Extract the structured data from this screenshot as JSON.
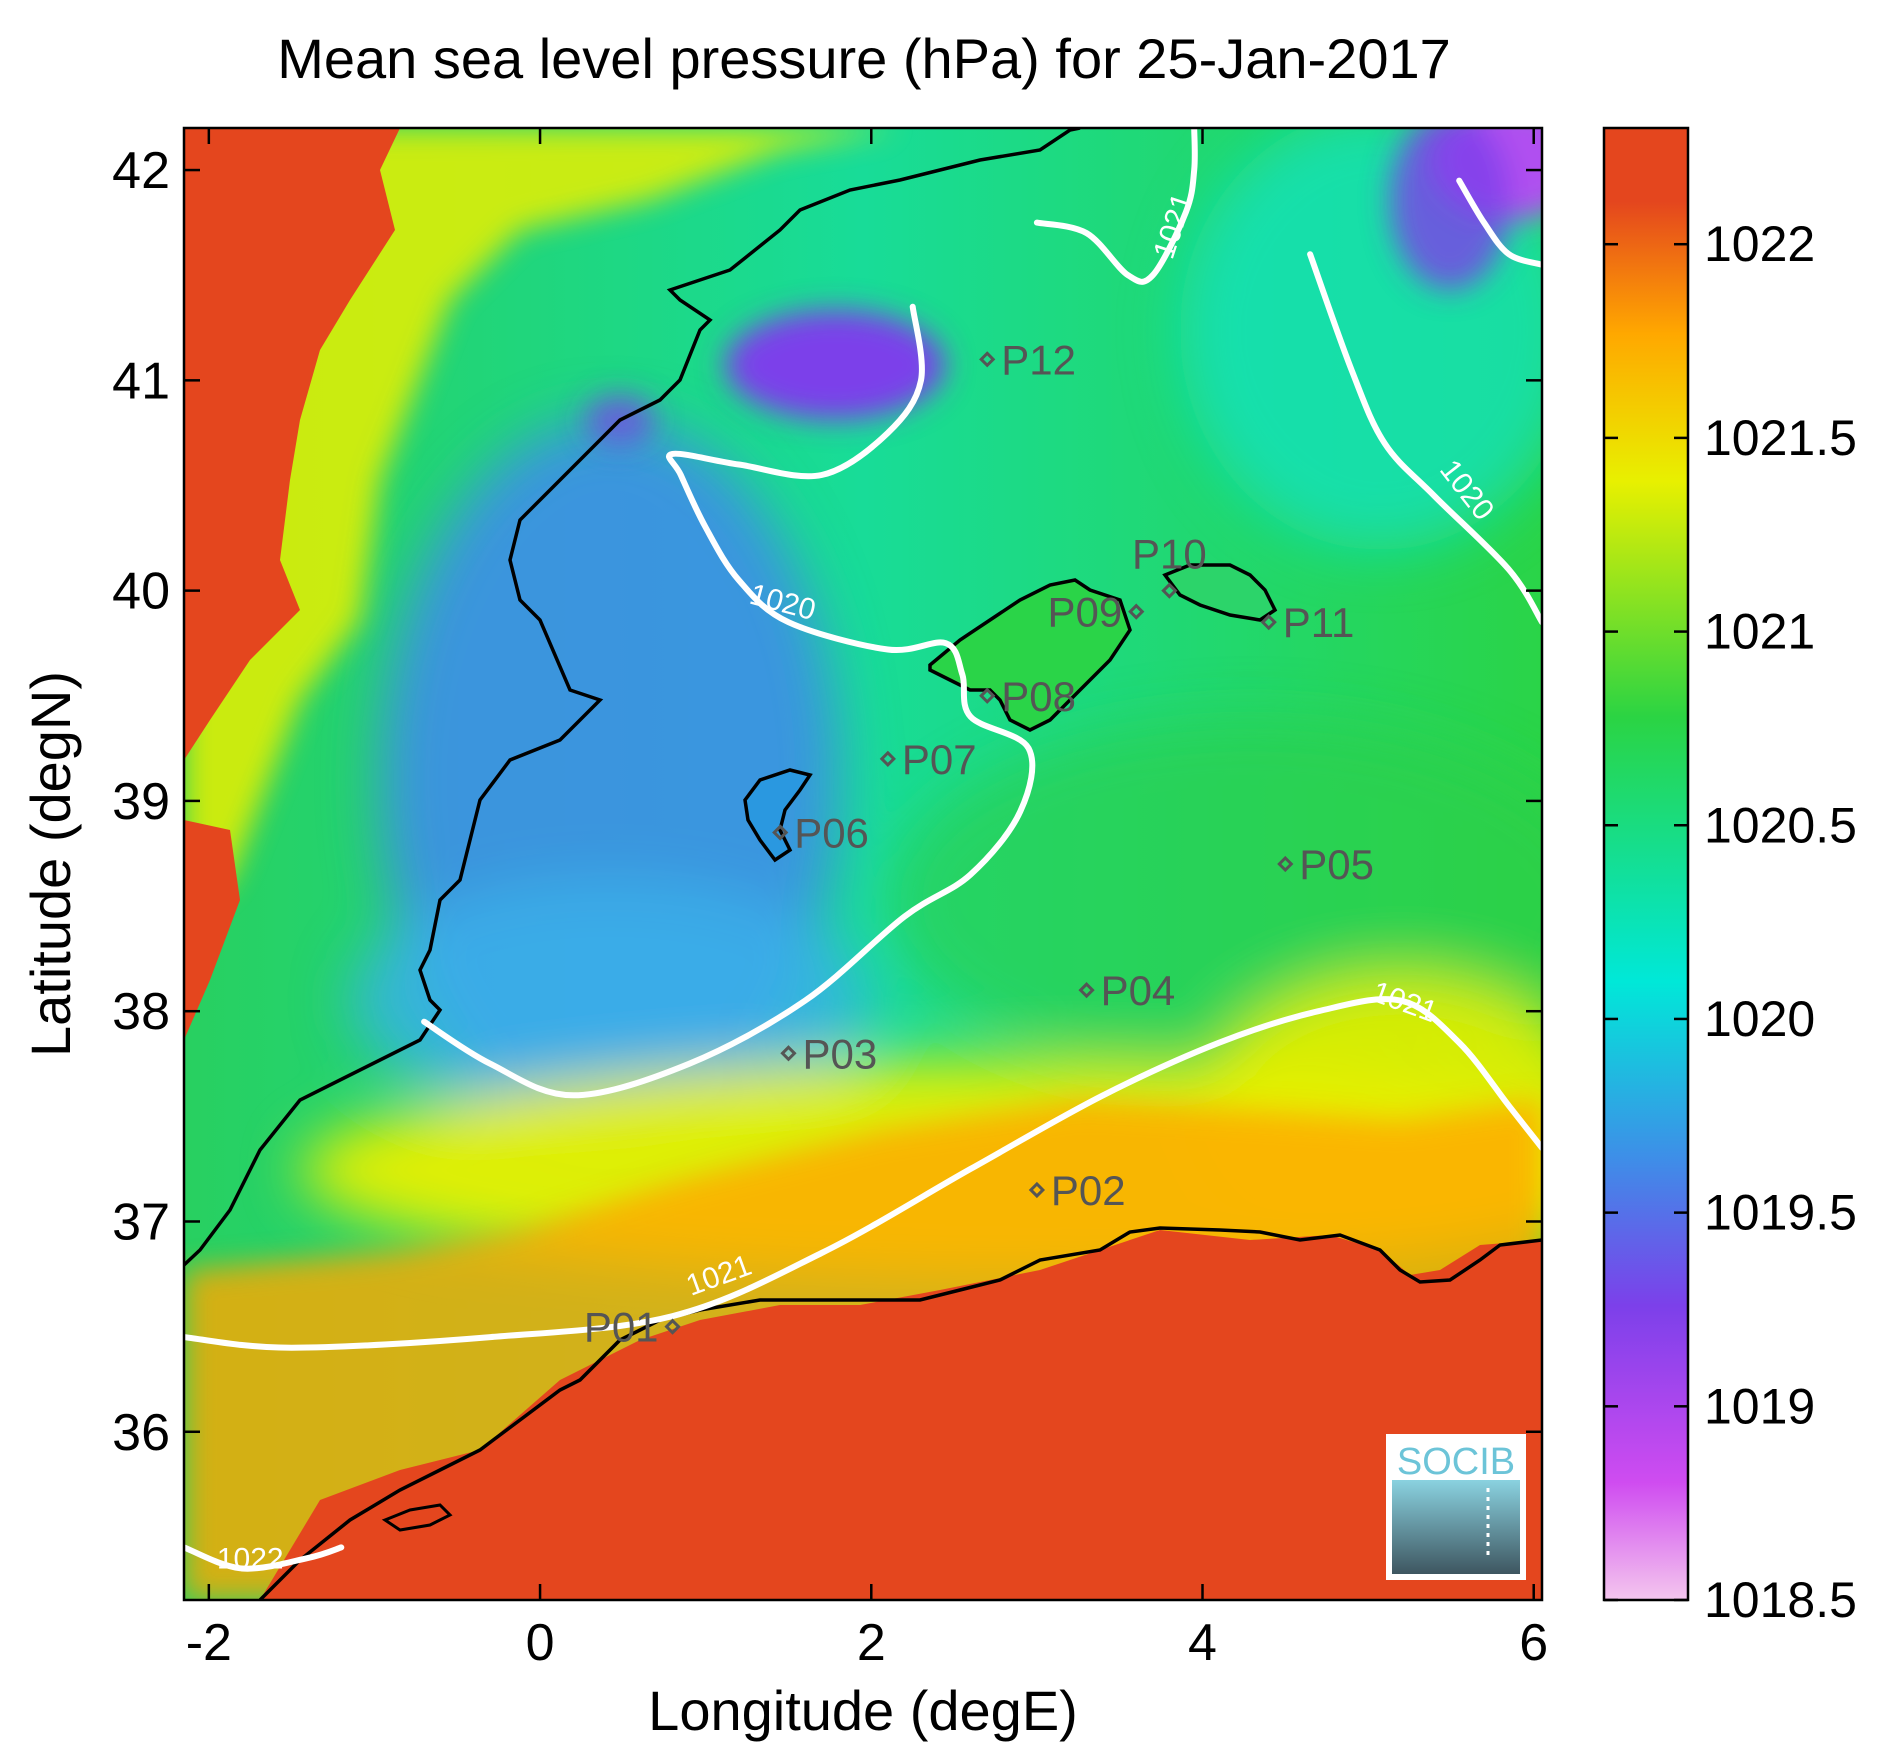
{
  "chart_data": {
    "type": "heatmap",
    "title": "Mean sea level pressure (hPa) for 25-Jan-2017",
    "xlabel": "Longitude (degE)",
    "ylabel": "Latitude (degN)",
    "xlim": [
      -2.15,
      6.05
    ],
    "ylim": [
      35.2,
      42.2
    ],
    "x_ticks": [
      {
        "v": -2,
        "label": "-2"
      },
      {
        "v": 0,
        "label": "0"
      },
      {
        "v": 2,
        "label": "2"
      },
      {
        "v": 4,
        "label": "4"
      },
      {
        "v": 6,
        "label": "6"
      }
    ],
    "y_ticks": [
      {
        "v": 36,
        "label": "36"
      },
      {
        "v": 37,
        "label": "37"
      },
      {
        "v": 38,
        "label": "38"
      },
      {
        "v": 39,
        "label": "39"
      },
      {
        "v": 40,
        "label": "40"
      },
      {
        "v": 41,
        "label": "41"
      },
      {
        "v": 42,
        "label": "42"
      }
    ],
    "colorbar": {
      "range": [
        1018.5,
        1022.3
      ],
      "ticks": [
        {
          "v": 1018.5,
          "label": "1018.5"
        },
        {
          "v": 1019,
          "label": "1019"
        },
        {
          "v": 1019.5,
          "label": "1019.5"
        },
        {
          "v": 1020,
          "label": "1020"
        },
        {
          "v": 1020.5,
          "label": "1020.5"
        },
        {
          "v": 1021,
          "label": "1021"
        },
        {
          "v": 1021.5,
          "label": "1021.5"
        },
        {
          "v": 1022,
          "label": "1022"
        }
      ],
      "colors": [
        "#f4c6ee",
        "#cf4cf0",
        "#7c40ea",
        "#3e8ee8",
        "#00e8d8",
        "#2bd443",
        "#e8f000",
        "#ffa800",
        "#e4461e"
      ]
    },
    "land_color": "#e4461e",
    "contour_color": "#ffffff",
    "contours": [
      {
        "level": 1020,
        "label": "1020",
        "points": [
          [
            -0.7,
            37.95
          ],
          [
            -0.3,
            37.75
          ],
          [
            0.2,
            37.6
          ],
          [
            0.9,
            37.75
          ],
          [
            1.6,
            38.05
          ],
          [
            2.2,
            38.45
          ],
          [
            2.6,
            38.65
          ],
          [
            2.9,
            38.95
          ],
          [
            2.95,
            39.25
          ],
          [
            2.6,
            39.4
          ],
          [
            2.55,
            39.6
          ],
          [
            2.45,
            39.75
          ],
          [
            2.1,
            39.72
          ],
          [
            1.5,
            39.85
          ],
          [
            1.2,
            40.05
          ],
          [
            1.0,
            40.3
          ],
          [
            0.85,
            40.55
          ],
          [
            0.8,
            40.65
          ],
          [
            1.2,
            40.6
          ],
          [
            1.7,
            40.55
          ],
          [
            2.1,
            40.75
          ],
          [
            2.3,
            41.0
          ],
          [
            2.25,
            41.35
          ]
        ],
        "label_pos": [
          1.45,
          39.9
        ],
        "label_rot": 15
      },
      {
        "level": 1020,
        "label": "1020",
        "points": [
          [
            4.65,
            41.6
          ],
          [
            4.9,
            41.05
          ],
          [
            5.1,
            40.7
          ],
          [
            5.4,
            40.45
          ],
          [
            5.85,
            40.1
          ],
          [
            6.05,
            39.85
          ]
        ],
        "label_pos": [
          5.55,
          40.45
        ],
        "label_rot": 52
      },
      {
        "level": 1020,
        "label": "",
        "points": [
          [
            5.55,
            41.95
          ],
          [
            5.7,
            41.75
          ],
          [
            5.85,
            41.6
          ],
          [
            6.05,
            41.55
          ]
        ],
        "label_pos": [
          0,
          0
        ],
        "label_rot": 0
      },
      {
        "level": 1021,
        "label": "1021",
        "points": [
          [
            -2.15,
            36.45
          ],
          [
            -1.5,
            36.4
          ],
          [
            -0.3,
            36.45
          ],
          [
            0.8,
            36.55
          ],
          [
            1.7,
            36.85
          ],
          [
            2.6,
            37.25
          ],
          [
            3.4,
            37.6
          ],
          [
            4.1,
            37.85
          ],
          [
            4.7,
            38.0
          ],
          [
            5.2,
            38.05
          ],
          [
            5.55,
            37.85
          ],
          [
            5.85,
            37.55
          ],
          [
            6.05,
            37.35
          ]
        ],
        "label_pos": [
          5.2,
          38.0
        ],
        "label_rot": 20
      },
      {
        "level": 1021,
        "label": "1021",
        "points": [
          [
            3.0,
            41.75
          ],
          [
            3.3,
            41.7
          ],
          [
            3.55,
            41.5
          ],
          [
            3.7,
            41.5
          ],
          [
            3.9,
            41.8
          ],
          [
            3.95,
            42.0
          ],
          [
            3.95,
            42.2
          ]
        ],
        "label_pos": [
          3.88,
          41.72
        ],
        "label_rot": -72
      },
      {
        "level": 1022,
        "label": "1022",
        "points": [
          [
            -2.15,
            35.45
          ],
          [
            -1.8,
            35.35
          ],
          [
            -1.4,
            35.4
          ],
          [
            -1.2,
            35.45
          ]
        ],
        "label_pos": [
          -1.75,
          35.35
        ],
        "label_rot": 0
      }
    ],
    "contour_label_extra": {
      "label": "1021",
      "pos": [
        1.1,
        36.7
      ],
      "rot": -20
    },
    "stations": [
      {
        "name": "P01",
        "lon": 0.8,
        "lat": 36.5,
        "label_side": "left"
      },
      {
        "name": "P02",
        "lon": 3.0,
        "lat": 37.15,
        "label_side": "right"
      },
      {
        "name": "P03",
        "lon": 1.5,
        "lat": 37.8,
        "label_side": "right"
      },
      {
        "name": "P04",
        "lon": 3.3,
        "lat": 38.1,
        "label_side": "right"
      },
      {
        "name": "P05",
        "lon": 4.5,
        "lat": 38.7,
        "label_side": "right"
      },
      {
        "name": "P06",
        "lon": 1.45,
        "lat": 38.85,
        "label_side": "right"
      },
      {
        "name": "P07",
        "lon": 2.1,
        "lat": 39.2,
        "label_side": "right"
      },
      {
        "name": "P08",
        "lon": 2.7,
        "lat": 39.5,
        "label_side": "right"
      },
      {
        "name": "P09",
        "lon": 3.6,
        "lat": 39.9,
        "label_side": "left"
      },
      {
        "name": "P10",
        "lon": 3.8,
        "lat": 40.0,
        "label_side": "above"
      },
      {
        "name": "P11",
        "lon": 4.4,
        "lat": 39.85,
        "label_side": "right"
      },
      {
        "name": "P12",
        "lon": 2.7,
        "lat": 41.1,
        "label_side": "right"
      }
    ]
  },
  "logo": {
    "text": "SOCIB"
  }
}
